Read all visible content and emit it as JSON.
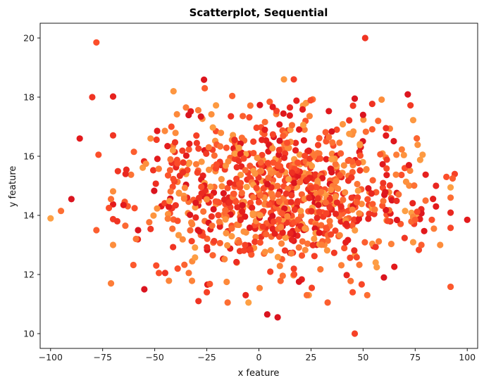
{
  "chart_data": {
    "type": "scatter",
    "title": "Scatterplot, Sequential",
    "xlabel": "x feature",
    "ylabel": "y feature",
    "xlim": [
      -105,
      105
    ],
    "ylim": [
      9.5,
      20.5
    ],
    "x_ticks": [
      -100,
      -75,
      -50,
      -25,
      0,
      25,
      50,
      75,
      100
    ],
    "x_tick_labels": [
      "−100",
      "−75",
      "−50",
      "−25",
      "0",
      "25",
      "50",
      "75",
      "100"
    ],
    "y_ticks": [
      10,
      12,
      14,
      16,
      18,
      20
    ],
    "y_tick_labels": [
      "10",
      "12",
      "14",
      "16",
      "18",
      "20"
    ],
    "grid": false,
    "legend": "none",
    "colormap": "YlOrRd",
    "colormap_colors": [
      "#fed976",
      "#feb24c",
      "#fd8d3c",
      "#fc4e2a",
      "#e31a1c",
      "#bd0026"
    ],
    "point_color_range": [
      0.3,
      0.85
    ],
    "seed": 42,
    "points": [
      {
        "x": -100,
        "y": 13.9,
        "c": 0.3
      },
      {
        "x": -95,
        "y": 14.15,
        "c": 0.5
      },
      {
        "x": -90,
        "y": 14.55,
        "c": 0.85
      },
      {
        "x": -86,
        "y": 16.6,
        "c": 0.8
      },
      {
        "x": -80,
        "y": 18.0,
        "c": 0.7
      },
      {
        "x": -78,
        "y": 19.85,
        "c": 0.6
      },
      {
        "x": -77,
        "y": 16.05,
        "c": 0.6
      },
      {
        "x": -78,
        "y": 13.5,
        "c": 0.55
      },
      {
        "x": -72,
        "y": 14.25,
        "c": 0.6
      },
      {
        "x": -71,
        "y": 14.55,
        "c": 0.5
      },
      {
        "x": -70,
        "y": 13.0,
        "c": 0.4
      },
      {
        "x": -71,
        "y": 11.7,
        "c": 0.45
      },
      {
        "x": -68,
        "y": 13.8,
        "c": 0.7
      },
      {
        "x": -65,
        "y": 14.35,
        "c": 0.8
      },
      {
        "x": -64,
        "y": 15.4,
        "c": 0.75
      },
      {
        "x": -60,
        "y": 16.15,
        "c": 0.55
      },
      {
        "x": -58,
        "y": 13.5,
        "c": 0.85
      },
      {
        "x": -55,
        "y": 11.5,
        "c": 0.85
      },
      {
        "x": -52,
        "y": 16.6,
        "c": 0.4
      },
      {
        "x": -48,
        "y": 12.05,
        "c": 0.6
      },
      {
        "x": -45,
        "y": 12.05,
        "c": 0.7
      },
      {
        "x": -42,
        "y": 17.0,
        "c": 0.6
      },
      {
        "x": -41,
        "y": 18.2,
        "c": 0.35
      },
      {
        "x": -39,
        "y": 12.2,
        "c": 0.6
      },
      {
        "x": -35,
        "y": 17.65,
        "c": 0.45
      },
      {
        "x": -29,
        "y": 11.1,
        "c": 0.7
      },
      {
        "x": -26,
        "y": 18.3,
        "c": 0.55
      },
      {
        "x": -25,
        "y": 11.4,
        "c": 0.65
      },
      {
        "x": -15,
        "y": 11.05,
        "c": 0.5
      },
      {
        "x": -5,
        "y": 11.05,
        "c": 0.3
      },
      {
        "x": 4,
        "y": 10.65,
        "c": 0.85
      },
      {
        "x": 9,
        "y": 10.55,
        "c": 0.85
      },
      {
        "x": 23,
        "y": 11.3,
        "c": 0.5
      },
      {
        "x": 33,
        "y": 11.05,
        "c": 0.55
      },
      {
        "x": 45,
        "y": 11.4,
        "c": 0.6
      },
      {
        "x": 46,
        "y": 10.0,
        "c": 0.65
      },
      {
        "x": 51,
        "y": 20.0,
        "c": 0.7
      },
      {
        "x": 46,
        "y": 17.95,
        "c": 0.85
      },
      {
        "x": 50,
        "y": 17.4,
        "c": 0.85
      },
      {
        "x": 52,
        "y": 11.3,
        "c": 0.5
      },
      {
        "x": 60,
        "y": 11.9,
        "c": 0.85
      },
      {
        "x": 61,
        "y": 16.95,
        "c": 0.7
      },
      {
        "x": 61,
        "y": 16.7,
        "c": 0.8
      },
      {
        "x": 66,
        "y": 16.05,
        "c": 0.45
      },
      {
        "x": 70,
        "y": 15.6,
        "c": 0.6
      },
      {
        "x": 72,
        "y": 15.7,
        "c": 0.8
      },
      {
        "x": 75,
        "y": 13.85,
        "c": 0.55
      },
      {
        "x": 78,
        "y": 13.0,
        "c": 0.55
      },
      {
        "x": 80,
        "y": 14.5,
        "c": 0.5
      },
      {
        "x": 83,
        "y": 13.85,
        "c": 0.6
      },
      {
        "x": 84,
        "y": 13.55,
        "c": 0.45
      },
      {
        "x": 85,
        "y": 14.3,
        "c": 0.8
      },
      {
        "x": 85,
        "y": 15.0,
        "c": 0.75
      },
      {
        "x": 87,
        "y": 13.0,
        "c": 0.4
      },
      {
        "x": 90,
        "y": 15.3,
        "c": 0.6
      },
      {
        "x": 92,
        "y": 14.6,
        "c": 0.5
      },
      {
        "x": 94,
        "y": 15.4,
        "c": 0.65
      },
      {
        "x": 93,
        "y": 15.25,
        "c": 0.55
      },
      {
        "x": 100,
        "y": 13.85,
        "c": 0.8
      }
    ],
    "cloud": {
      "n": 960,
      "x_mean": 10,
      "x_sd": 32,
      "y_mean": 14.75,
      "y_sd": 1.35,
      "x_range": [
        -70,
        92
      ],
      "y_range": [
        11.3,
        18.6
      ]
    }
  }
}
